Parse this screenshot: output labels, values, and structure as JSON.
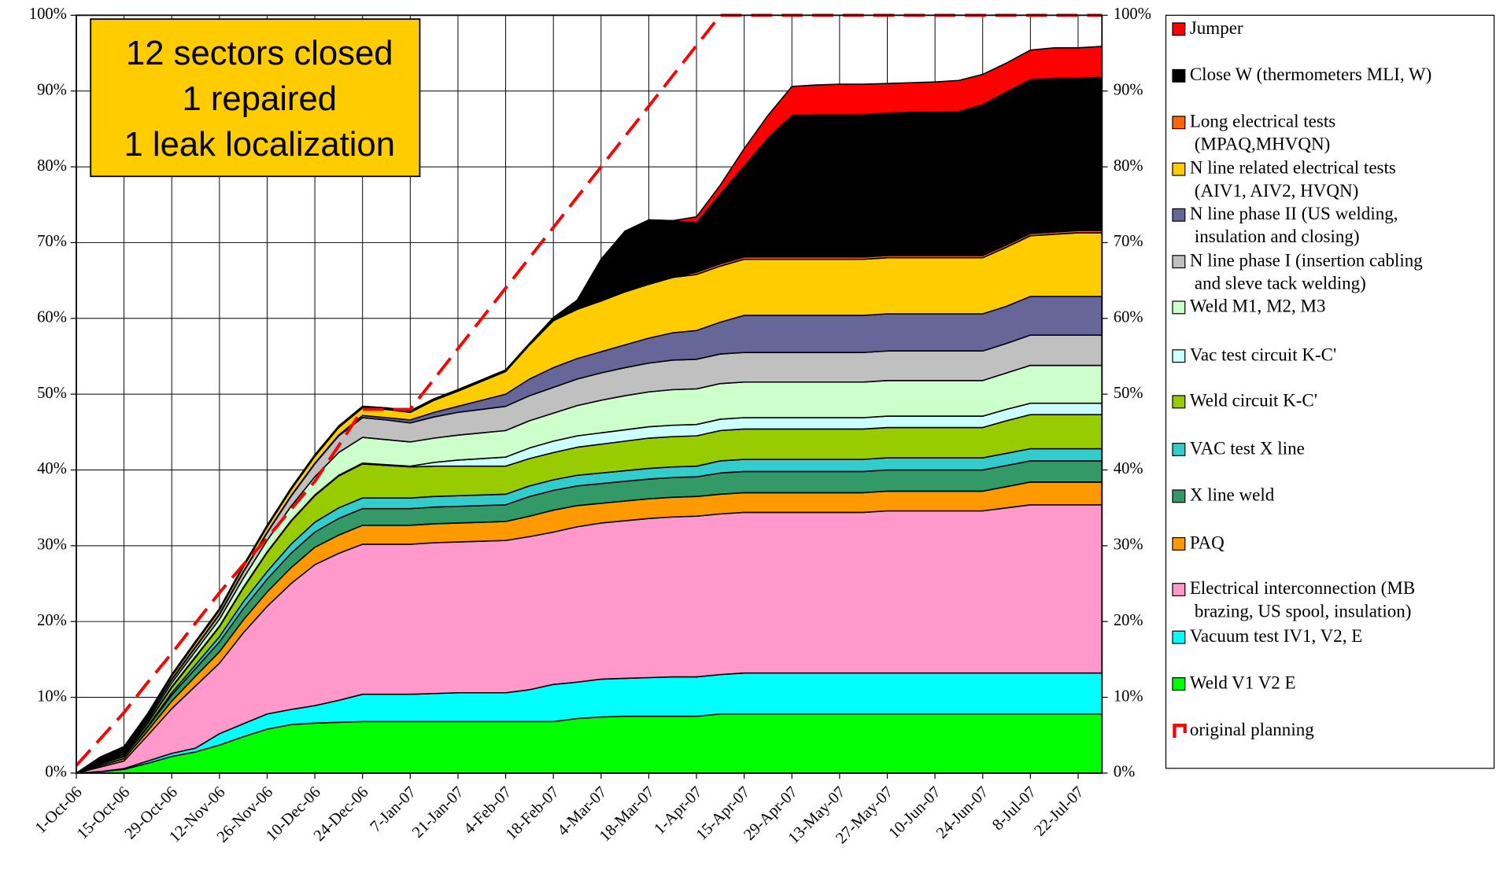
{
  "chart_data": {
    "type": "stacked_area",
    "annotation": [
      "12 sectors closed",
      "1 repaired",
      "1 leak localization"
    ],
    "categories": [
      "1-Oct-06",
      null,
      "15-Oct-06",
      null,
      "29-Oct-06",
      null,
      "12-Nov-06",
      null,
      "26-Nov-06",
      null,
      "10-Dec-06",
      null,
      "24-Dec-06",
      null,
      "7-Jan-07",
      null,
      "21-Jan-07",
      null,
      "4-Feb-07",
      null,
      "18-Feb-07",
      null,
      "4-Mar-07",
      null,
      "18-Mar-07",
      null,
      "1-Apr-07",
      null,
      "15-Apr-07",
      null,
      "29-Apr-07",
      null,
      "13-May-07",
      null,
      "27-May-07",
      null,
      "10-Jun-07",
      null,
      "24-Jun-07",
      null,
      "8-Jul-07",
      null,
      "22-Jul-07",
      null
    ],
    "ylim": [
      0,
      100
    ],
    "yticks": [
      {
        "value": 0,
        "label": "0%"
      },
      {
        "value": 10,
        "label": "10%"
      },
      {
        "value": 20,
        "label": "20%"
      },
      {
        "value": 30,
        "label": "30%"
      },
      {
        "value": 40,
        "label": "40%"
      },
      {
        "value": 50,
        "label": "50%"
      },
      {
        "value": 60,
        "label": "60%"
      },
      {
        "value": 70,
        "label": "70%"
      },
      {
        "value": 80,
        "label": "80%"
      },
      {
        "value": 90,
        "label": "90%"
      },
      {
        "value": 100,
        "label": "100%"
      }
    ],
    "grid": true,
    "legend": "right",
    "series": [
      {
        "name": "Weld V1 V2 E",
        "color": "#00ff00",
        "values": [
          0,
          0.2,
          0.5,
          1.3,
          2.2,
          2.8,
          3.7,
          4.8,
          5.8,
          6.4,
          6.6,
          6.7,
          6.8,
          6.8,
          6.8,
          6.8,
          6.8,
          6.8,
          6.8,
          6.8,
          6.8,
          7.2,
          7.4,
          7.5,
          7.5,
          7.5,
          7.5,
          7.8,
          7.8,
          7.8,
          7.8,
          7.8,
          7.8,
          7.8,
          7.8,
          7.8,
          7.8,
          7.8,
          7.8,
          7.8,
          7.8,
          7.8,
          7.8,
          7.8
        ]
      },
      {
        "name": "Vacuum test IV1, V2, E",
        "color": "#00ffff",
        "values": [
          0,
          0,
          0.1,
          0.3,
          0.4,
          0.5,
          1.5,
          1.7,
          2.0,
          2.0,
          2.3,
          2.9,
          3.6,
          3.6,
          3.6,
          3.7,
          3.8,
          3.8,
          3.8,
          4.2,
          4.9,
          4.8,
          5.0,
          5.0,
          5.1,
          5.2,
          5.2,
          5.2,
          5.4,
          5.4,
          5.4,
          5.4,
          5.4,
          5.4,
          5.4,
          5.4,
          5.4,
          5.4,
          5.4,
          5.4,
          5.4,
          5.4,
          5.4,
          5.4
        ]
      },
      {
        "name": "Electrical interconnection (MB brazing, US spool, insulation)",
        "color": "#ff99cc",
        "values": [
          0,
          0.6,
          1.0,
          3.4,
          5.9,
          8.2,
          9.3,
          12,
          14.2,
          16.6,
          18.6,
          19.4,
          19.8,
          19.8,
          19.8,
          19.9,
          19.9,
          20,
          20.1,
          20.2,
          20.1,
          20.5,
          20.6,
          20.8,
          21,
          21.1,
          21.2,
          21.2,
          21.2,
          21.2,
          21.2,
          21.2,
          21.2,
          21.2,
          21.4,
          21.4,
          21.4,
          21.4,
          21.4,
          21.8,
          22.2,
          22.2,
          22.2,
          22.2
        ]
      },
      {
        "name": "PAQ",
        "color": "#ff9900",
        "values": [
          0,
          0.2,
          0.3,
          0.6,
          1.0,
          1.3,
          1.5,
          1.7,
          1.9,
          2.1,
          2.3,
          2.4,
          2.5,
          2.5,
          2.5,
          2.5,
          2.5,
          2.5,
          2.5,
          2.7,
          2.9,
          2.8,
          2.6,
          2.6,
          2.6,
          2.6,
          2.6,
          2.6,
          2.6,
          2.6,
          2.6,
          2.6,
          2.6,
          2.6,
          2.6,
          2.6,
          2.6,
          2.6,
          2.6,
          2.8,
          3.0,
          3.0,
          3.0,
          3.0
        ]
      },
      {
        "name": " X line weld",
        "color": "#339966",
        "values": [
          0,
          0.2,
          0.3,
          0.5,
          0.8,
          1.0,
          1.3,
          1.5,
          1.7,
          1.9,
          2.0,
          2.2,
          2.2,
          2.2,
          2.2,
          2.2,
          2.2,
          2.2,
          2.2,
          2.6,
          2.6,
          2.6,
          2.6,
          2.6,
          2.6,
          2.6,
          2.6,
          2.8,
          2.8,
          2.8,
          2.8,
          2.8,
          2.8,
          2.8,
          2.8,
          2.8,
          2.8,
          2.8,
          2.8,
          2.8,
          2.8,
          2.8,
          2.8,
          2.8
        ]
      },
      {
        "name": "VAC test X line",
        "color": "#33cccc",
        "values": [
          0,
          0.1,
          0.1,
          0.1,
          0.3,
          0.5,
          0.7,
          0.9,
          1.0,
          1.2,
          1.3,
          1.4,
          1.4,
          1.4,
          1.4,
          1.4,
          1.4,
          1.4,
          1.4,
          1.4,
          1.4,
          1.4,
          1.4,
          1.4,
          1.4,
          1.4,
          1.4,
          1.6,
          1.6,
          1.6,
          1.6,
          1.6,
          1.6,
          1.6,
          1.6,
          1.6,
          1.6,
          1.6,
          1.6,
          1.6,
          1.6,
          1.6,
          1.6,
          1.6
        ]
      },
      {
        "name": "Weld circuit K-C'",
        "color": "#99cc00",
        "values": [
          0,
          0.1,
          0.2,
          0.4,
          0.7,
          1.0,
          1.3,
          1.8,
          2.5,
          3,
          3.5,
          4.2,
          4.5,
          4.3,
          4.1,
          4.0,
          3.9,
          3.8,
          3.7,
          3.6,
          3.6,
          3.7,
          3.8,
          3.9,
          4.0,
          4.0,
          4.0,
          4.0,
          4.0,
          4.0,
          4.0,
          4.0,
          4.0,
          4.0,
          4.0,
          4.0,
          4.0,
          4.0,
          4.0,
          4.3,
          4.5,
          4.5,
          4.5,
          4.5
        ]
      },
      {
        "name": "Vac test circuit K-C'",
        "color": "#ccffff",
        "values": [
          0,
          0.1,
          0.1,
          0.1,
          0.1,
          0.1,
          0.1,
          0.1,
          0.1,
          0.1,
          0.1,
          0.1,
          0.1,
          0.1,
          0.1,
          0.5,
          0.8,
          1.0,
          1.2,
          1.4,
          1.5,
          1.5,
          1.5,
          1.5,
          1.5,
          1.5,
          1.5,
          1.5,
          1.5,
          1.5,
          1.5,
          1.5,
          1.5,
          1.5,
          1.5,
          1.5,
          1.5,
          1.5,
          1.5,
          1.5,
          1.5,
          1.5,
          1.5,
          1.5
        ]
      },
      {
        "name": "Weld M1, M2, M3",
        "color": "#ccffcc",
        "values": [
          0,
          0.1,
          0.2,
          0.3,
          0.5,
          0.7,
          0.9,
          1.2,
          1.5,
          1.9,
          2.4,
          3.0,
          3.4,
          3.3,
          3.2,
          3.2,
          3.3,
          3.4,
          3.5,
          3.6,
          3.7,
          4,
          4.3,
          4.5,
          4.6,
          4.7,
          4.7,
          4.7,
          4.7,
          4.7,
          4.7,
          4.7,
          4.7,
          4.7,
          4.7,
          4.7,
          4.7,
          4.7,
          4.7,
          4.8,
          5.0,
          5.0,
          5.0,
          5.0
        ]
      },
      {
        "name": "N line phase I (insertion cabling and sleve tack welding)",
        "color": "#c0c0c0",
        "values": [
          0,
          0.1,
          0.2,
          0.3,
          0.4,
          0.5,
          0.6,
          0.8,
          1.0,
          1.3,
          1.7,
          2.2,
          2.6,
          2.6,
          2.5,
          2.8,
          3.0,
          3.1,
          3.2,
          3.3,
          3.4,
          3.5,
          3.6,
          3.7,
          3.8,
          3.9,
          3.9,
          3.9,
          3.9,
          3.9,
          3.9,
          3.9,
          3.9,
          3.9,
          3.9,
          3.9,
          3.9,
          3.9,
          3.9,
          3.9,
          4.0,
          4.0,
          4.0,
          4.0
        ]
      },
      {
        "name": "N line phase II (US welding, insulation and closing)",
        "color": "#666699",
        "values": [
          0,
          0.1,
          0.1,
          0.1,
          0.1,
          0.1,
          0.1,
          0.1,
          0.1,
          0.1,
          0.1,
          0.1,
          0.3,
          0.3,
          0.4,
          0.6,
          0.8,
          1.2,
          1.6,
          2.2,
          2.6,
          2.7,
          2.8,
          3,
          3.3,
          3.6,
          3.8,
          4.2,
          4.9,
          4.9,
          4.9,
          4.9,
          4.9,
          4.9,
          4.9,
          4.9,
          4.9,
          4.9,
          4.9,
          4.9,
          5.1,
          5.1,
          5.1,
          5.1
        ]
      },
      {
        "name": "N line related electrical tests (AIV1, AIV2, HVQN)",
        "color": "#ffcc00",
        "values": [
          0,
          0.1,
          0.2,
          0.3,
          0.4,
          0.5,
          0.5,
          0.6,
          0.7,
          0.8,
          0.9,
          1.0,
          1.0,
          1.1,
          1.0,
          1.6,
          2.0,
          2.5,
          3,
          4.5,
          6.2,
          6.5,
          6.7,
          7.0,
          7.1,
          7.3,
          7.4,
          7.4,
          7.4,
          7.4,
          7.4,
          7.4,
          7.4,
          7.4,
          7.4,
          7.4,
          7.4,
          7.4,
          7.4,
          7.8,
          8.0,
          8.2,
          8.4,
          8.4
        ]
      },
      {
        "name": "Long electrical tests (MPAQ,MHVQN)",
        "color": "#ff6600",
        "values": [
          0,
          0,
          0,
          0,
          0,
          0,
          0,
          0,
          0,
          0,
          0,
          0,
          0,
          0,
          0,
          0,
          0,
          0,
          0,
          0,
          0,
          0,
          0,
          0,
          0,
          0,
          0.3,
          0.3,
          0.3,
          0.3,
          0.3,
          0.3,
          0.3,
          0.3,
          0.3,
          0.3,
          0.3,
          0.3,
          0.3,
          0.3,
          0.3,
          0.3,
          0.3,
          0.3
        ]
      },
      {
        "name": "Close W (thermometers MLI, W)",
        "color": "#000000",
        "values": [
          0,
          0.2,
          0.2,
          0.2,
          0.2,
          0.2,
          0.2,
          0.2,
          0.2,
          0.2,
          0.2,
          0.2,
          0.2,
          0.2,
          0.2,
          0.2,
          0.2,
          0.2,
          0.2,
          0.2,
          0.4,
          1.2,
          5.5,
          8.0,
          8.5,
          7.5,
          6.5,
          9.2,
          12,
          15.7,
          18.7,
          18.8,
          18.8,
          18.8,
          18.8,
          18.9,
          18.9,
          19,
          19.9,
          20.2,
          20.3,
          20.3,
          20.1,
          20.2
        ]
      },
      {
        "name": "Jumper",
        "color": "#ff0000",
        "values": [
          0,
          0,
          0,
          0,
          0,
          0,
          0,
          0,
          0,
          0,
          0,
          0,
          0,
          0,
          0,
          0,
          0,
          0,
          0,
          0,
          0,
          0,
          0,
          0,
          0,
          0,
          0.8,
          1.2,
          2.3,
          3.0,
          3.8,
          3.9,
          4.0,
          4.0,
          3.9,
          3.9,
          4.0,
          4.1,
          4.0,
          3.8,
          3.9,
          4.0,
          4.0,
          4.1
        ]
      }
    ],
    "lines": [
      {
        "name": "original planning",
        "color": "#ff0000",
        "dashed": true,
        "values": [
          1,
          4.5,
          8,
          12,
          15.8,
          19.8,
          23.8,
          27.5,
          31,
          34.8,
          38.5,
          43.2,
          48,
          48,
          48,
          52,
          56,
          60,
          64,
          68,
          72,
          76,
          80,
          84,
          88,
          92,
          96,
          100,
          100,
          100,
          100,
          100,
          100,
          100,
          100,
          100,
          100,
          100,
          100,
          100,
          100,
          100,
          100,
          100
        ]
      }
    ]
  }
}
